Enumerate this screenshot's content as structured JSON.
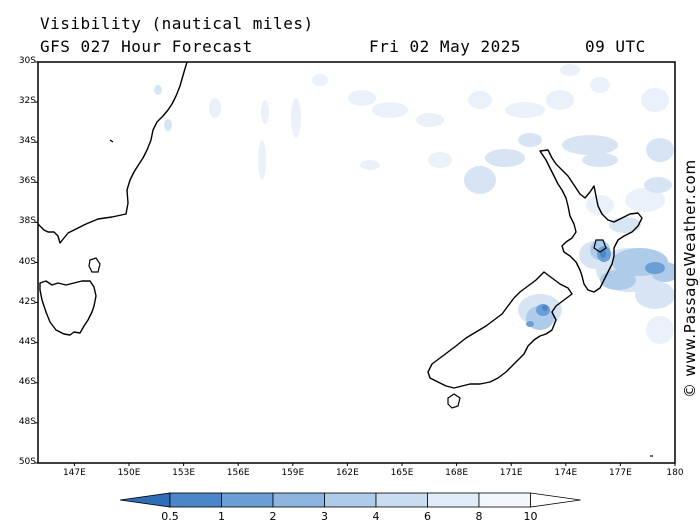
{
  "header": {
    "title": "Visibility (nautical miles)",
    "subtitle": "GFS 027 Hour Forecast",
    "date": "Fri 02 May 2025",
    "time": "09 UTC"
  },
  "credit": "© www.PassageWeather.com",
  "map": {
    "lon_range": [
      145,
      180
    ],
    "lat_range": [
      -50,
      -30
    ],
    "lat_labels": [
      "30S",
      "32S",
      "34S",
      "36S",
      "38S",
      "40S",
      "42S",
      "44S",
      "46S",
      "48S",
      "50S"
    ],
    "lon_labels": [
      "147E",
      "150E",
      "153E",
      "156E",
      "159E",
      "162E",
      "165E",
      "168E",
      "171E",
      "174E",
      "177E",
      "180"
    ]
  },
  "legend": {
    "labels": [
      "0.5",
      "1",
      "2",
      "3",
      "4",
      "6",
      "8",
      "10"
    ],
    "colors": [
      "#2f6db6",
      "#4a86c8",
      "#6a9ed5",
      "#8cb5e0",
      "#aecbea",
      "#cadcf1",
      "#e2ecf8",
      "#f3f7fc",
      "#ffffff"
    ]
  }
}
